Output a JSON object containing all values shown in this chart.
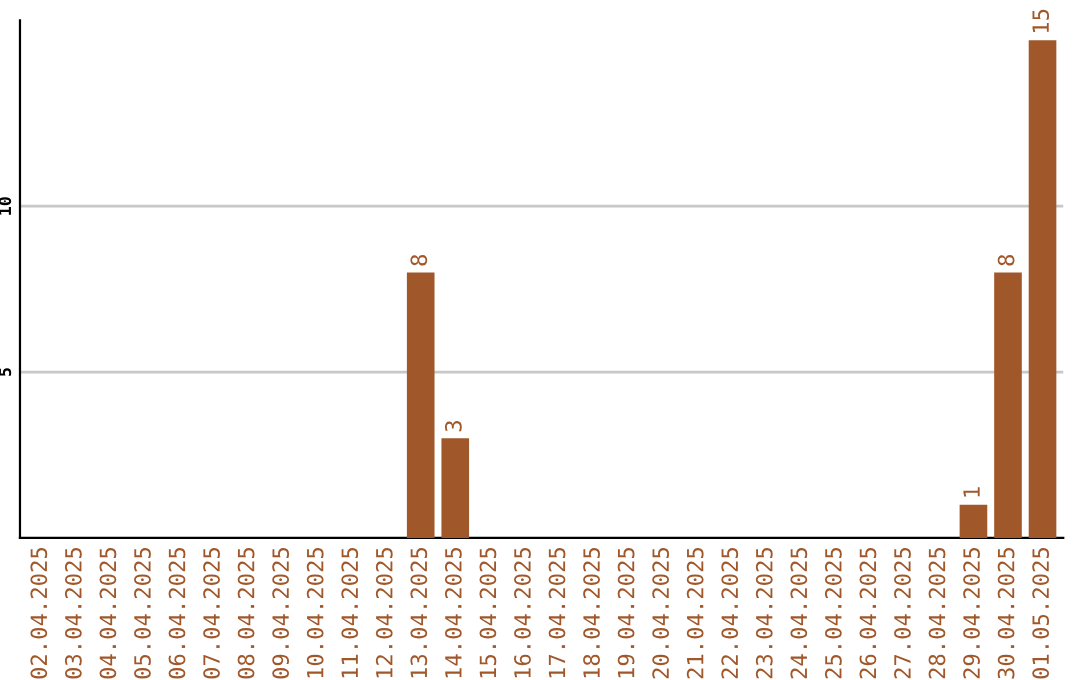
{
  "chart_data": {
    "type": "bar",
    "categories": [
      "02.04.2025",
      "03.04.2025",
      "04.04.2025",
      "05.04.2025",
      "06.04.2025",
      "07.04.2025",
      "08.04.2025",
      "09.04.2025",
      "10.04.2025",
      "11.04.2025",
      "12.04.2025",
      "13.04.2025",
      "14.04.2025",
      "15.04.2025",
      "16.04.2025",
      "17.04.2025",
      "18.04.2025",
      "19.04.2025",
      "20.04.2025",
      "21.04.2025",
      "22.04.2025",
      "23.04.2025",
      "24.04.2025",
      "25.04.2025",
      "26.04.2025",
      "27.04.2025",
      "28.04.2025",
      "29.04.2025",
      "30.04.2025",
      "01.05.2025"
    ],
    "values": [
      0,
      0,
      0,
      0,
      0,
      0,
      0,
      0,
      0,
      0,
      0,
      8,
      3,
      0,
      0,
      0,
      0,
      0,
      0,
      0,
      0,
      0,
      0,
      0,
      0,
      0,
      0,
      1,
      8,
      15
    ],
    "value_labels": [
      null,
      null,
      null,
      null,
      null,
      null,
      null,
      null,
      null,
      null,
      null,
      "8",
      "3",
      null,
      null,
      null,
      null,
      null,
      null,
      null,
      null,
      null,
      null,
      null,
      null,
      null,
      null,
      "1",
      "8",
      "15"
    ],
    "color": "#a0572a",
    "ylim": [
      0,
      15.6
    ],
    "yticks": [
      5,
      10
    ],
    "grid": "y"
  }
}
